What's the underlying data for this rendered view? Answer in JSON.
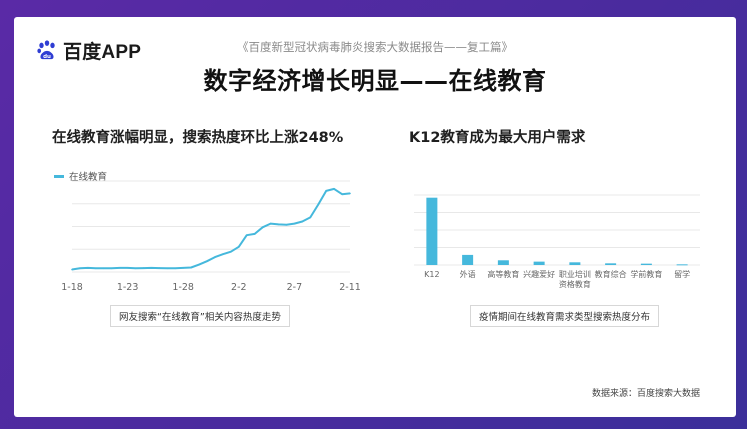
{
  "brand": {
    "logo_icon": "baidu-paw-icon",
    "name": "百度APP",
    "color": "#2f3dd3"
  },
  "header": {
    "subtitle": "《百度新型冠状病毒肺炎搜索大数据报告——复工篇》",
    "title": "数字经济增长明显——在线教育"
  },
  "left_panel": {
    "heading": "在线教育涨幅明显，搜索热度环比上涨248%",
    "caption": "网友搜索“在线教育”相关内容热度走势"
  },
  "right_panel": {
    "heading": "K12教育成为最大用户需求",
    "caption": "疫情期间在线教育需求类型搜索热度分布"
  },
  "source": "数据来源：百度搜索大数据",
  "colors": {
    "series": "#45b8dc",
    "grid": "#e8e8e8"
  },
  "chart_data": [
    {
      "type": "line",
      "title": "",
      "x_tick_labels": [
        "1-18",
        "1-23",
        "1-28",
        "2-2",
        "2-7",
        "2-11"
      ],
      "series": [
        {
          "name": "在线教育",
          "values": [
            0.6,
            0.9,
            1.0,
            0.9,
            0.9,
            0.9,
            1.0,
            1.0,
            0.9,
            0.95,
            1.0,
            0.95,
            0.9,
            0.9,
            1.0,
            1.1,
            1.8,
            2.6,
            3.6,
            4.3,
            4.9,
            6.1,
            8.9,
            9.2,
            10.8,
            11.7,
            11.5,
            11.4,
            11.7,
            12.2,
            13.2,
            16.3,
            19.6,
            20.1,
            18.8,
            19.0
          ]
        }
      ],
      "ylim": [
        0,
        22
      ],
      "grid": true,
      "legend": "top-left"
    },
    {
      "type": "bar",
      "title": "",
      "categories": [
        "K12",
        "外语",
        "高等教育",
        "兴趣爱好",
        "职业培训\n资格教育",
        "教育综合",
        "学前教育",
        "留学"
      ],
      "series": [
        {
          "values": [
            100,
            15,
            7,
            5,
            4,
            2.5,
            2,
            1
          ]
        }
      ],
      "ylim": [
        0,
        104
      ],
      "grid": true
    }
  ]
}
